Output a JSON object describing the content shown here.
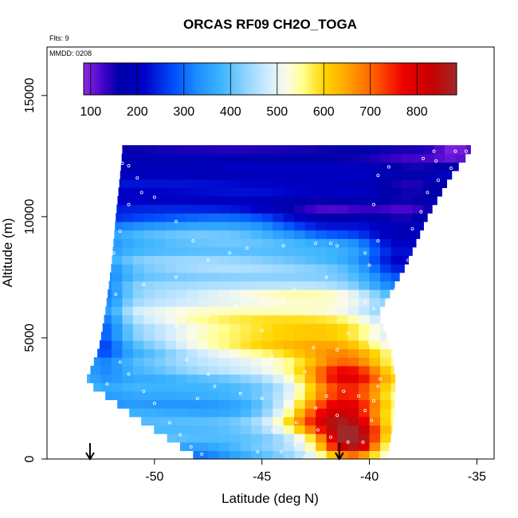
{
  "chart_data": {
    "type": "heatmap",
    "title": "ORCAS RF09 CH2O_TOGA",
    "annotations": [
      "Flts: 9",
      "MMDD: 0208"
    ],
    "xlabel": "Latitude (deg N)",
    "ylabel": "Altitude (m)",
    "xlim": [
      -55,
      -34.2
    ],
    "ylim": [
      0,
      17000
    ],
    "x_ticks": [
      -50,
      -45,
      -40,
      -35
    ],
    "y_ticks": [
      0,
      5000,
      10000,
      15000
    ],
    "x_tick_labels": [
      "-50",
      "-45",
      "-40",
      "-35"
    ],
    "y_tick_labels": [
      "0",
      "5000",
      "10000",
      "15000"
    ],
    "colorbar": {
      "range": [
        85,
        885
      ],
      "ticks": [
        100,
        200,
        300,
        400,
        500,
        600,
        700,
        800
      ],
      "tick_labels": [
        "100",
        "200",
        "300",
        "400",
        "500",
        "600",
        "700",
        "800"
      ],
      "stops": [
        {
          "v": 85,
          "c": "#8a2be2"
        },
        {
          "v": 130,
          "c": "#3d00c8"
        },
        {
          "v": 160,
          "c": "#0000a8"
        },
        {
          "v": 215,
          "c": "#0000c8"
        },
        {
          "v": 280,
          "c": "#0050ff"
        },
        {
          "v": 330,
          "c": "#1e90ff"
        },
        {
          "v": 380,
          "c": "#3cb4ff"
        },
        {
          "v": 430,
          "c": "#8cd2ff"
        },
        {
          "v": 480,
          "c": "#d0ecff"
        },
        {
          "v": 520,
          "c": "#fbfbe8"
        },
        {
          "v": 555,
          "c": "#ffff90"
        },
        {
          "v": 600,
          "c": "#ffd700"
        },
        {
          "v": 650,
          "c": "#ffa500"
        },
        {
          "v": 710,
          "c": "#ff5a00"
        },
        {
          "v": 770,
          "c": "#ee0000"
        },
        {
          "v": 830,
          "c": "#c80000"
        },
        {
          "v": 885,
          "c": "#a02828"
        }
      ]
    },
    "cell_lat_width": 0.5,
    "cell_alt_height": 350,
    "lat_bounds": [
      {
        "alt": 0,
        "lo": -47.9,
        "hi": -39.2
      },
      {
        "alt": 1500,
        "lo": -50.5,
        "hi": -38.9
      },
      {
        "alt": 3200,
        "lo": -53.2,
        "hi": -38.8
      },
      {
        "alt": 4500,
        "lo": -52.6,
        "hi": -39.0
      },
      {
        "alt": 6000,
        "lo": -52.3,
        "hi": -39.6
      },
      {
        "alt": 8000,
        "lo": -52.0,
        "hi": -38.3
      },
      {
        "alt": 10000,
        "lo": -51.8,
        "hi": -37.3
      },
      {
        "alt": 11700,
        "lo": -51.6,
        "hi": -36.2
      },
      {
        "alt": 12700,
        "lo": -51.5,
        "hi": -35.3
      }
    ],
    "base_profile": [
      {
        "alt": 0,
        "v": 400
      },
      {
        "alt": 700,
        "v": 390
      },
      {
        "alt": 1500,
        "v": 420
      },
      {
        "alt": 2500,
        "v": 430
      },
      {
        "alt": 3500,
        "v": 460
      },
      {
        "alt": 4500,
        "v": 500
      },
      {
        "alt": 5500,
        "v": 500
      },
      {
        "alt": 6500,
        "v": 470
      },
      {
        "alt": 7500,
        "v": 420
      },
      {
        "alt": 8500,
        "v": 360
      },
      {
        "alt": 9500,
        "v": 310
      },
      {
        "alt": 10500,
        "v": 230
      },
      {
        "alt": 11500,
        "v": 190
      },
      {
        "alt": 12700,
        "v": 180
      }
    ],
    "features": [
      {
        "lat": -41.0,
        "alt": 2000,
        "slat": 1.6,
        "salt": 1300,
        "amp": 330
      },
      {
        "lat": -40.8,
        "alt": 700,
        "slat": 0.9,
        "salt": 450,
        "amp": 300
      },
      {
        "lat": -42.5,
        "alt": 1700,
        "slat": 1.6,
        "salt": 450,
        "amp": 160
      },
      {
        "lat": -41.0,
        "alt": 3600,
        "slat": 1.4,
        "salt": 500,
        "amp": 120
      },
      {
        "lat": -42.8,
        "alt": 4800,
        "slat": 3.2,
        "salt": 650,
        "amp": 110
      },
      {
        "lat": -45.0,
        "alt": 5400,
        "slat": 4.0,
        "salt": 900,
        "amp": 40
      },
      {
        "lat": -42.5,
        "alt": 6900,
        "slat": 3.0,
        "salt": 300,
        "amp": 70
      },
      {
        "lat": -50.8,
        "alt": 4300,
        "slat": 1.5,
        "salt": 1300,
        "amp": -80
      },
      {
        "lat": -52.5,
        "alt": 5500,
        "slat": 0.8,
        "salt": 1800,
        "amp": -180
      },
      {
        "lat": -47.5,
        "alt": 2900,
        "slat": 2.6,
        "salt": 900,
        "amp": -70
      },
      {
        "lat": -47.0,
        "alt": 9500,
        "slat": 3.5,
        "salt": 400,
        "amp": 90
      },
      {
        "lat": -47.0,
        "alt": 8000,
        "slat": 3.5,
        "salt": 500,
        "amp": 60
      },
      {
        "lat": -38.5,
        "alt": 8500,
        "slat": 1.2,
        "salt": 1000,
        "amp": -150
      },
      {
        "lat": -38.8,
        "alt": 6000,
        "slat": 1.2,
        "salt": 1200,
        "amp": -90
      },
      {
        "lat": -42.0,
        "alt": 10000,
        "slat": 1.8,
        "salt": 600,
        "amp": -110
      },
      {
        "lat": -38.0,
        "alt": 11000,
        "slat": 1.2,
        "salt": 1200,
        "amp": -60
      },
      {
        "lat": -36.0,
        "alt": 12650,
        "slat": 0.7,
        "salt": 200,
        "amp": -90
      },
      {
        "lat": -48.0,
        "alt": 300,
        "slat": 1.6,
        "salt": 300,
        "amp": -90
      }
    ],
    "obs_points": [
      [
        -52.2,
        3100
      ],
      [
        -51.6,
        4000
      ],
      [
        -51.2,
        3500
      ],
      [
        -50.5,
        2800
      ],
      [
        -50.0,
        2300
      ],
      [
        -49.3,
        1500
      ],
      [
        -48.8,
        1000
      ],
      [
        -48.3,
        500
      ],
      [
        -47.8,
        200
      ],
      [
        -48.0,
        2500
      ],
      [
        -48.5,
        4100
      ],
      [
        -47.5,
        3500
      ],
      [
        -47.2,
        3000
      ],
      [
        -46.0,
        2700
      ],
      [
        -45.0,
        2500
      ],
      [
        -44.0,
        1800
      ],
      [
        -44.5,
        1200
      ],
      [
        -43.5,
        600
      ],
      [
        -44.1,
        300
      ],
      [
        -43.0,
        100
      ],
      [
        -41.8,
        900
      ],
      [
        -41.0,
        700
      ],
      [
        -40.3,
        700
      ],
      [
        -39.9,
        1600
      ],
      [
        -40.2,
        2000
      ],
      [
        -39.8,
        2400
      ],
      [
        -40.5,
        2600
      ],
      [
        -39.6,
        3000
      ],
      [
        -39.5,
        3300
      ],
      [
        -41.5,
        1800
      ],
      [
        -42.5,
        2100
      ],
      [
        -42.0,
        2600
      ],
      [
        -41.2,
        2800
      ],
      [
        -43.0,
        3600
      ],
      [
        -41.5,
        4500
      ],
      [
        -40.0,
        4800
      ],
      [
        -39.7,
        5000
      ],
      [
        -41.0,
        5200
      ],
      [
        -49.0,
        5500
      ],
      [
        -51.8,
        6800
      ],
      [
        -50.5,
        7200
      ],
      [
        -49.0,
        7500
      ],
      [
        -47.5,
        8200
      ],
      [
        -46.5,
        8500
      ],
      [
        -45.7,
        8700
      ],
      [
        -44.0,
        8800
      ],
      [
        -42.5,
        8900
      ],
      [
        -41.8,
        8900
      ],
      [
        -41.5,
        8800
      ],
      [
        -40.0,
        8000
      ],
      [
        -42.0,
        7500
      ],
      [
        -43.5,
        7000
      ],
      [
        -44.0,
        6500
      ],
      [
        -40.2,
        6500
      ],
      [
        -39.8,
        6200
      ],
      [
        -38.8,
        7000
      ],
      [
        -38.5,
        6000
      ],
      [
        -38.0,
        5500
      ],
      [
        -38.2,
        8200
      ],
      [
        -38.0,
        9500
      ],
      [
        -39.8,
        10500
      ],
      [
        -39.6,
        9000
      ],
      [
        -40.2,
        8500
      ],
      [
        -37.6,
        10200
      ],
      [
        -37.3,
        11000
      ],
      [
        -36.8,
        11500
      ],
      [
        -36.2,
        12000
      ],
      [
        -35.5,
        12700
      ],
      [
        -36.0,
        12700
      ],
      [
        -37.0,
        12700
      ],
      [
        -37.5,
        12400
      ],
      [
        -51.5,
        12200
      ],
      [
        -51.2,
        12100
      ],
      [
        -50.8,
        11600
      ],
      [
        -50.6,
        11000
      ],
      [
        -51.8,
        11000
      ],
      [
        -51.2,
        10500
      ],
      [
        -52.2,
        10100
      ],
      [
        -50.0,
        10800
      ],
      [
        -49.0,
        9800
      ],
      [
        -48.2,
        9000
      ],
      [
        -51.6,
        9400
      ],
      [
        -51.9,
        8500
      ],
      [
        -45.0,
        5300
      ],
      [
        -44.5,
        4200
      ],
      [
        -46.2,
        6300
      ],
      [
        -47.5,
        5900
      ],
      [
        -42.6,
        4600
      ],
      [
        -39.6,
        11700
      ],
      [
        -39.1,
        12050
      ],
      [
        -36.9,
        12300
      ],
      [
        -45.2,
        300
      ],
      [
        -43.4,
        1500
      ],
      [
        -42.4,
        1200
      ]
    ],
    "markers": [
      {
        "lat": -53.0,
        "label": "arrow"
      },
      {
        "lat": -41.4,
        "label": "arrow"
      }
    ]
  }
}
